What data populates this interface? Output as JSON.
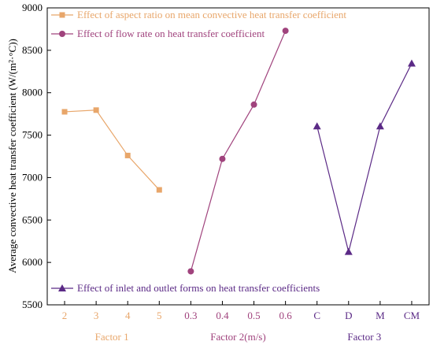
{
  "chart_data": {
    "type": "line",
    "ylabel": "Average convective heat transfer coefficient (W/(m²·°C))",
    "ylim": [
      5500,
      9000
    ],
    "yticks": [
      5500,
      6000,
      6500,
      7000,
      7500,
      8000,
      8500,
      9000
    ],
    "grid": false,
    "groups": [
      {
        "name": "Factor 1",
        "color": "#E8A66A",
        "categories": [
          "2",
          "3",
          "4",
          "5"
        ],
        "series": {
          "name": "Effect of aspect ratio on mean convective heat transfer coefficient",
          "marker": "square",
          "color": "#E8A66A",
          "values": [
            7775,
            7795,
            7260,
            6855
          ]
        }
      },
      {
        "name": "Factor 2(m/s)",
        "color": "#A0437D",
        "categories": [
          "0.3",
          "0.4",
          "0.5",
          "0.6"
        ],
        "series": {
          "name": "Effect of flow rate on heat transfer coefficient",
          "marker": "circle",
          "color": "#A0437D",
          "values": [
            5895,
            7220,
            7860,
            8730
          ]
        }
      },
      {
        "name": "Factor 3",
        "color": "#5B2A86",
        "categories": [
          "C",
          "D",
          "M",
          "CM"
        ],
        "series": {
          "name": "Effect of inlet and outlet forms on heat transfer coefficients",
          "marker": "triangle",
          "color": "#5B2A86",
          "values": [
            7605,
            6125,
            7605,
            8345
          ]
        }
      }
    ],
    "legend": [
      {
        "text": "Effect of aspect ratio on mean convective heat transfer coefficient",
        "position": "top-left"
      },
      {
        "text": "Effect of flow rate on heat transfer coefficient",
        "position": "top-left"
      },
      {
        "text": "Effect of inlet and outlet forms on heat transfer coefficients",
        "position": "bottom-left"
      }
    ]
  }
}
